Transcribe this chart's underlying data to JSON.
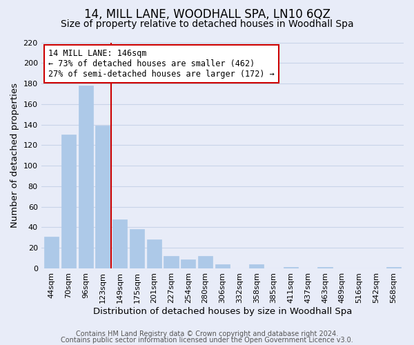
{
  "title": "14, MILL LANE, WOODHALL SPA, LN10 6QZ",
  "subtitle": "Size of property relative to detached houses in Woodhall Spa",
  "xlabel": "Distribution of detached houses by size in Woodhall Spa",
  "ylabel": "Number of detached properties",
  "bar_labels": [
    "44sqm",
    "70sqm",
    "96sqm",
    "123sqm",
    "149sqm",
    "175sqm",
    "201sqm",
    "227sqm",
    "254sqm",
    "280sqm",
    "306sqm",
    "332sqm",
    "358sqm",
    "385sqm",
    "411sqm",
    "437sqm",
    "463sqm",
    "489sqm",
    "516sqm",
    "542sqm",
    "568sqm"
  ],
  "bar_values": [
    31,
    130,
    178,
    139,
    48,
    38,
    28,
    12,
    9,
    12,
    4,
    0,
    4,
    0,
    1,
    0,
    1,
    0,
    0,
    0,
    1
  ],
  "bar_color": "#adc9e8",
  "ref_line_color": "#cc0000",
  "annotation_title": "14 MILL LANE: 146sqm",
  "annotation_line1": "← 73% of detached houses are smaller (462)",
  "annotation_line2": "27% of semi-detached houses are larger (172) →",
  "ylim": [
    0,
    220
  ],
  "yticks": [
    0,
    20,
    40,
    60,
    80,
    100,
    120,
    140,
    160,
    180,
    200,
    220
  ],
  "bg_color": "#e8ecf8",
  "plot_bg_color": "#e8ecf8",
  "grid_color": "#c8d4e8",
  "footer_line1": "Contains HM Land Registry data © Crown copyright and database right 2024.",
  "footer_line2": "Contains public sector information licensed under the Open Government Licence v3.0.",
  "title_fontsize": 12,
  "subtitle_fontsize": 10,
  "axis_label_fontsize": 9.5,
  "tick_fontsize": 8,
  "footer_fontsize": 7,
  "annotation_fontsize": 8.5
}
